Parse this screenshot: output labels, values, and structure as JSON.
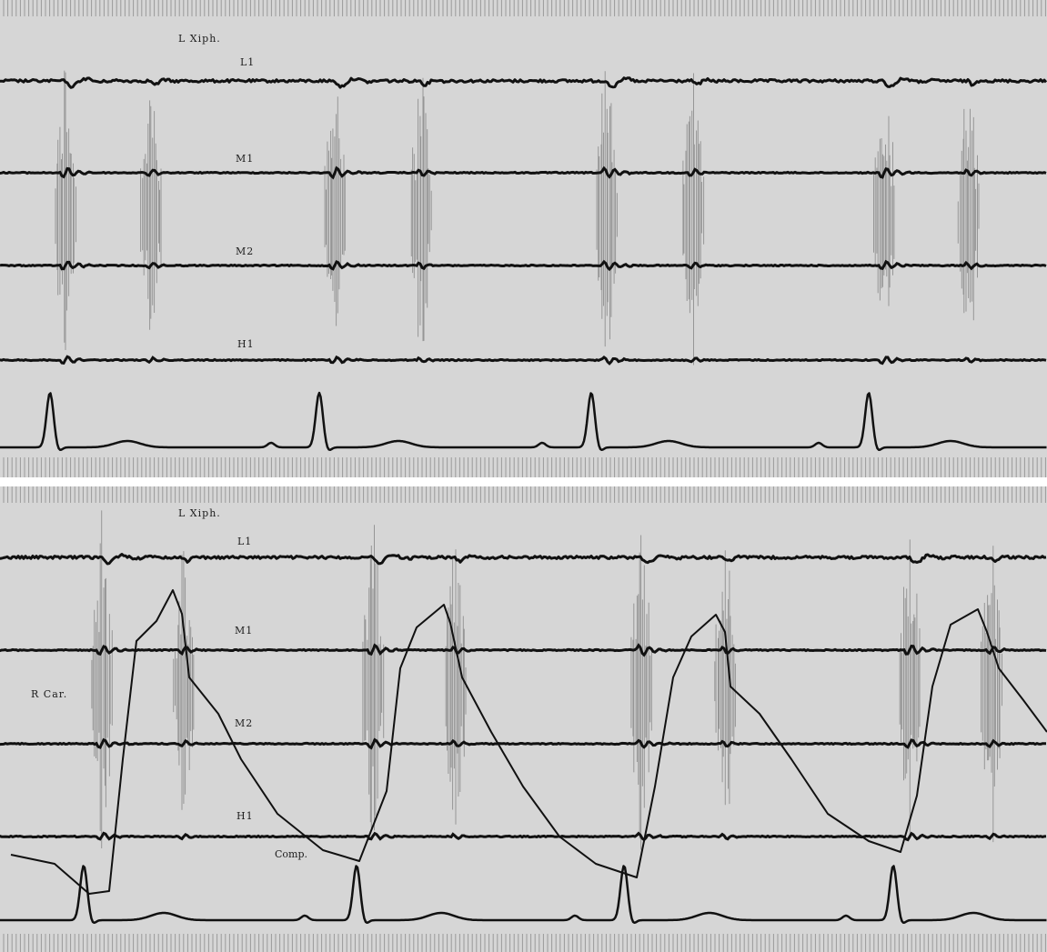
{
  "panels": [
    {
      "id": "top",
      "site_label": "L  Xiph.",
      "traces": [
        {
          "key": "l1",
          "label": "L1"
        },
        {
          "key": "m1",
          "label": "M1"
        },
        {
          "key": "m2",
          "label": "M2"
        },
        {
          "key": "h1",
          "label": "H1"
        }
      ]
    },
    {
      "id": "bottom",
      "site_label": "L  Xiph.",
      "pulse_label": "R  Car.",
      "comp_label": "Comp.",
      "traces": [
        {
          "key": "l1",
          "label": "L1"
        },
        {
          "key": "m1",
          "label": "M1"
        },
        {
          "key": "m2",
          "label": "M2"
        },
        {
          "key": "h1",
          "label": "H1"
        }
      ]
    }
  ],
  "colors": {
    "paper": "#d6d6d6",
    "trace": "#111111",
    "burst": "#8c8c8c",
    "timing": "#9a9a9a",
    "label": "#1c1c1c"
  }
}
